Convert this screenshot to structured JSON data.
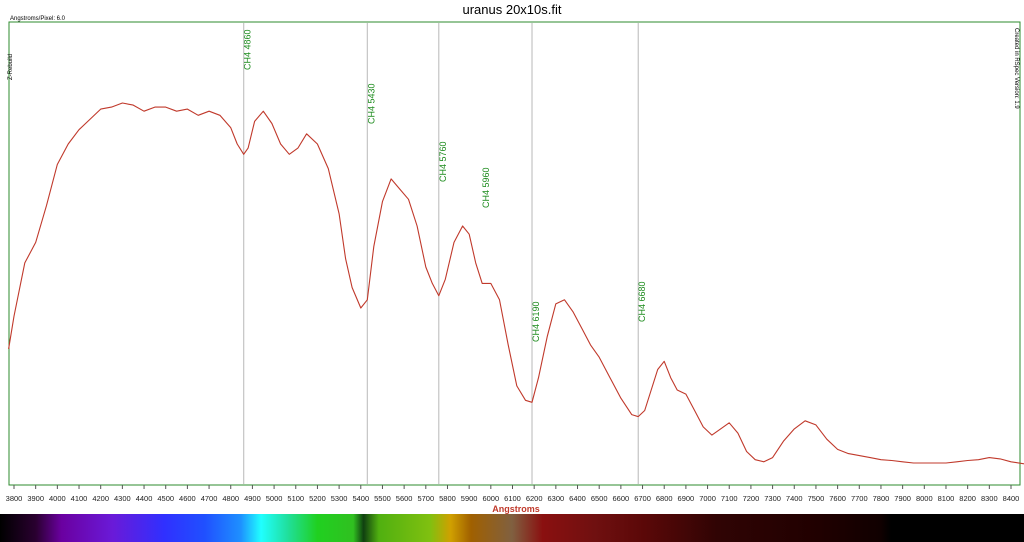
{
  "chart_data": {
    "type": "line",
    "title": "uranus 20x10s.fit",
    "xlabel": "Angstroms",
    "ylabel": "",
    "subtitle_left": "Angstroms/Pixel: 6.0",
    "side_label_left": "Z-Rebuild",
    "side_label_right": "Created in RSpec Version: 1.9",
    "xlim": [
      3775,
      8460
    ],
    "ylim": [
      0,
      1.0
    ],
    "grid": false,
    "xticks": [
      3800,
      3900,
      4000,
      4100,
      4200,
      4300,
      4400,
      4500,
      4600,
      4700,
      4800,
      4900,
      5000,
      5100,
      5200,
      5300,
      5400,
      5500,
      5600,
      5700,
      5800,
      5900,
      6000,
      6100,
      6200,
      6300,
      6400,
      6500,
      6600,
      6700,
      6800,
      6900,
      7000,
      7100,
      7200,
      7300,
      7400,
      7500,
      7600,
      7700,
      7800,
      7900,
      8000,
      8100,
      8200,
      8300,
      8400
    ],
    "series": [
      {
        "color": "#c0392b",
        "x": [
          3775,
          3800,
          3850,
          3900,
          3950,
          4000,
          4050,
          4100,
          4150,
          4200,
          4250,
          4300,
          4350,
          4400,
          4450,
          4500,
          4550,
          4600,
          4650,
          4700,
          4750,
          4800,
          4830,
          4860,
          4880,
          4910,
          4950,
          4990,
          5030,
          5070,
          5110,
          5150,
          5200,
          5250,
          5300,
          5330,
          5360,
          5400,
          5430,
          5460,
          5500,
          5540,
          5580,
          5620,
          5660,
          5700,
          5730,
          5760,
          5790,
          5830,
          5870,
          5900,
          5930,
          5960,
          6000,
          6040,
          6080,
          6120,
          6160,
          6190,
          6220,
          6260,
          6300,
          6340,
          6380,
          6420,
          6460,
          6500,
          6550,
          6600,
          6650,
          6680,
          6710,
          6740,
          6770,
          6800,
          6830,
          6860,
          6900,
          6940,
          6980,
          7020,
          7060,
          7100,
          7140,
          7180,
          7220,
          7260,
          7300,
          7350,
          7400,
          7450,
          7500,
          7550,
          7600,
          7650,
          7700,
          7750,
          7800,
          7850,
          7900,
          7950,
          8000,
          8050,
          8100,
          8150,
          8200,
          8250,
          8300,
          8350,
          8400,
          8460
        ],
        "y": [
          0.3,
          0.38,
          0.51,
          0.56,
          0.65,
          0.75,
          0.8,
          0.835,
          0.86,
          0.885,
          0.89,
          0.9,
          0.895,
          0.88,
          0.89,
          0.89,
          0.88,
          0.885,
          0.87,
          0.88,
          0.87,
          0.84,
          0.8,
          0.775,
          0.79,
          0.855,
          0.88,
          0.85,
          0.8,
          0.775,
          0.79,
          0.825,
          0.8,
          0.74,
          0.63,
          0.52,
          0.45,
          0.4,
          0.42,
          0.55,
          0.66,
          0.715,
          0.69,
          0.665,
          0.6,
          0.5,
          0.46,
          0.43,
          0.47,
          0.56,
          0.6,
          0.58,
          0.51,
          0.46,
          0.46,
          0.42,
          0.31,
          0.21,
          0.175,
          0.17,
          0.23,
          0.33,
          0.41,
          0.42,
          0.39,
          0.35,
          0.31,
          0.28,
          0.23,
          0.18,
          0.14,
          0.135,
          0.15,
          0.2,
          0.25,
          0.27,
          0.23,
          0.2,
          0.19,
          0.15,
          0.11,
          0.09,
          0.105,
          0.12,
          0.095,
          0.05,
          0.03,
          0.025,
          0.035,
          0.075,
          0.105,
          0.125,
          0.115,
          0.08,
          0.055,
          0.045,
          0.04,
          0.035,
          0.03,
          0.028,
          0.025,
          0.022,
          0.022,
          0.022,
          0.022,
          0.025,
          0.028,
          0.03,
          0.035,
          0.032,
          0.025,
          0.02
        ]
      }
    ],
    "annotations": [
      {
        "x": 4860,
        "label": "CH4 4860",
        "line": true
      },
      {
        "x": 5430,
        "label": "CH4 5430",
        "line": true
      },
      {
        "x": 5760,
        "label": "CH4 5760",
        "line": true
      },
      {
        "x": 5960,
        "label": "CH4 5960",
        "line": false
      },
      {
        "x": 6190,
        "label": "CH4 6190",
        "line": true
      },
      {
        "x": 6680,
        "label": "CH4 6680",
        "line": true
      }
    ],
    "colors": {
      "frame": "#2e8b2e",
      "line": "#c0392b",
      "annotation_text": "#1e8c1e",
      "annotation_line": "#b8b8b8",
      "xlabel": "#c0392b"
    }
  }
}
